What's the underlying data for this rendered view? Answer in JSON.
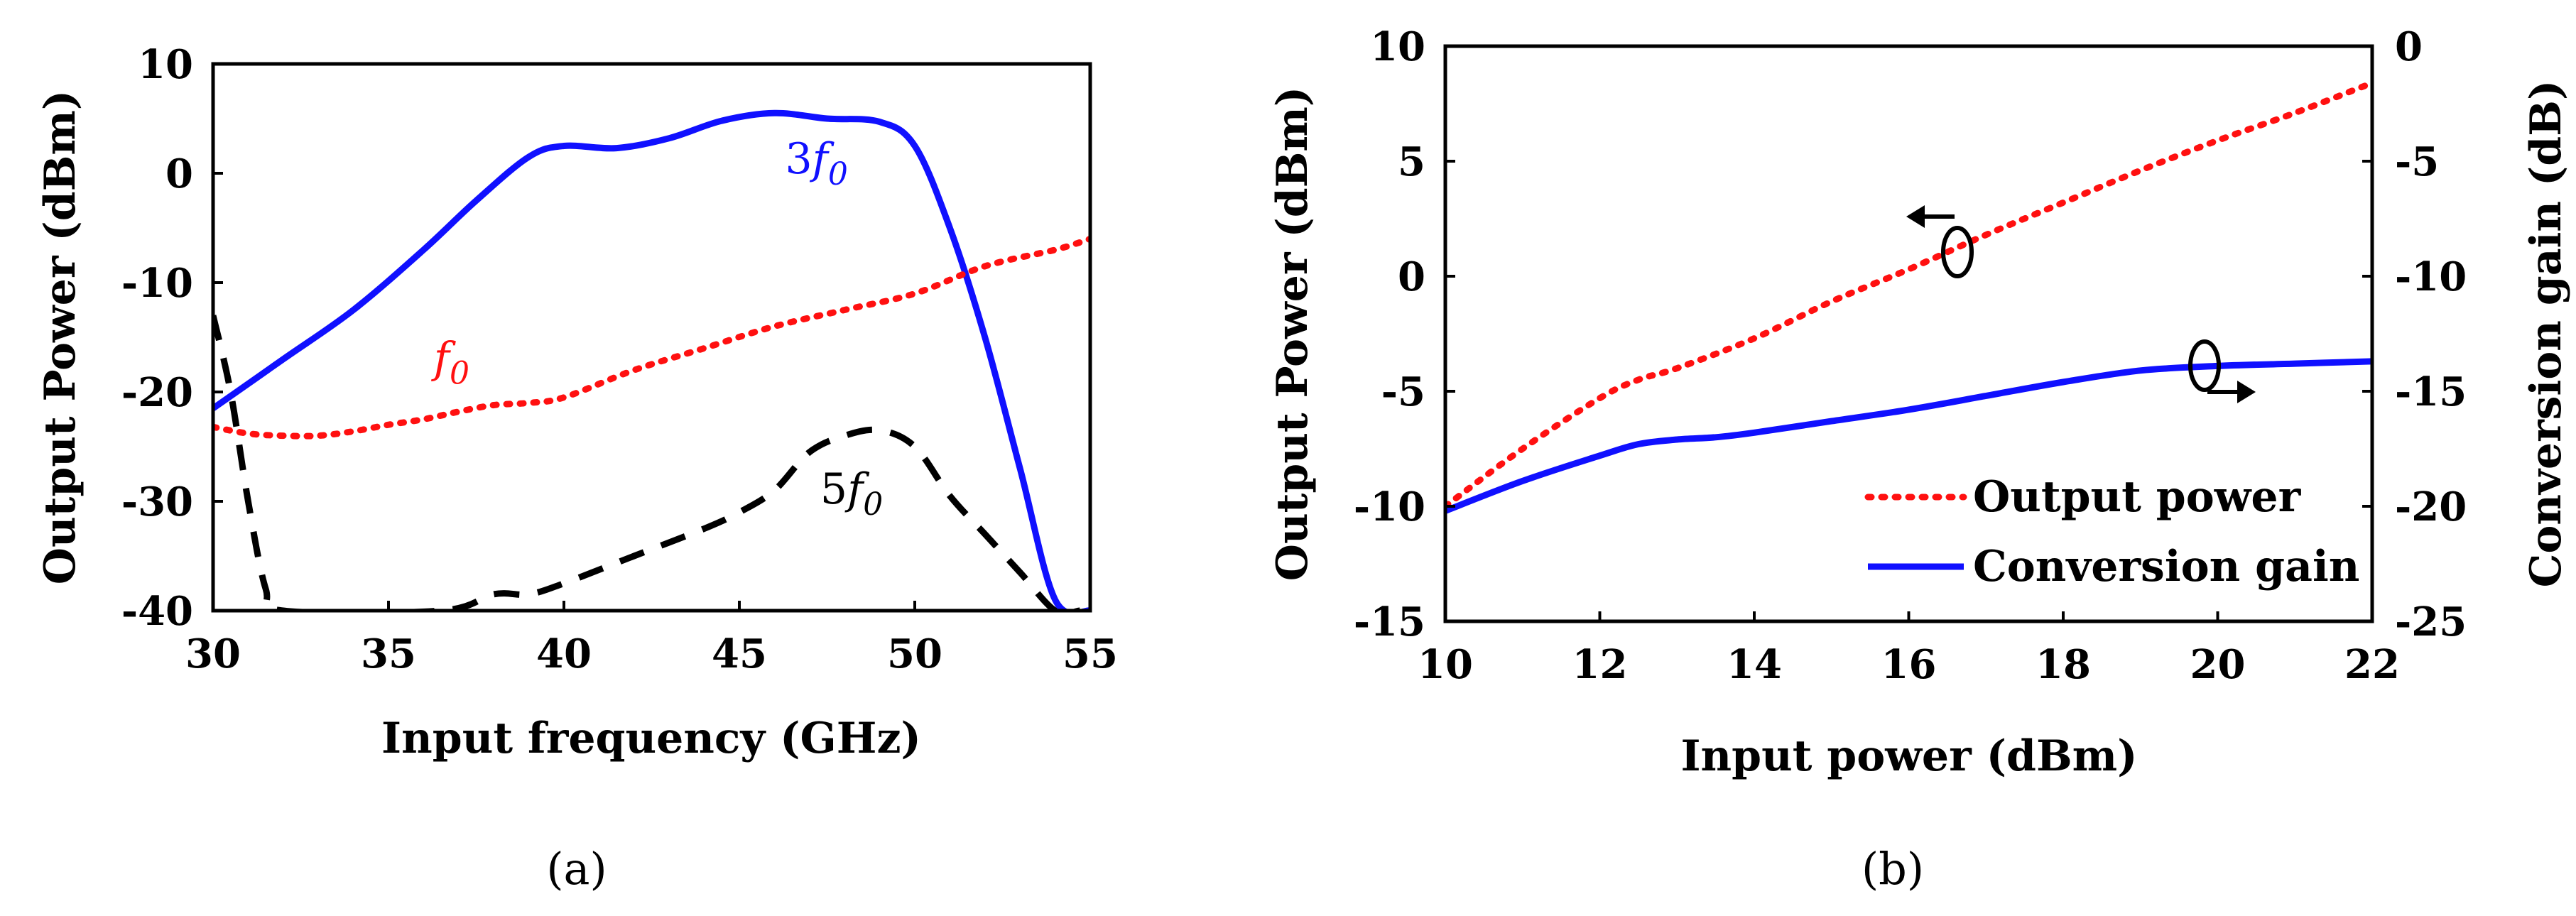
{
  "chart_data": [
    {
      "type": "line",
      "panel_label": "(a)",
      "xlabel": "Input frequency (GHz)",
      "ylabel": "Output Power (dBm)",
      "xlim": [
        30,
        55
      ],
      "ylim": [
        -40,
        10
      ],
      "xticks": [
        30,
        35,
        40,
        45,
        50,
        55
      ],
      "yticks": [
        -40,
        -30,
        -20,
        -10,
        0,
        10
      ],
      "grid": false,
      "series": [
        {
          "name": "3f0",
          "color": "#1010ff",
          "style": "solid",
          "x": [
            30,
            32,
            34,
            36,
            37.5,
            39,
            40,
            41.5,
            43,
            44.5,
            46,
            47.5,
            49,
            50,
            51,
            52,
            53,
            54,
            55
          ],
          "y": [
            -21.5,
            -17,
            -12.5,
            -7,
            -2.5,
            1.5,
            2.5,
            2.3,
            3.2,
            4.8,
            5.5,
            5,
            4.7,
            2.5,
            -5,
            -15,
            -27,
            -39,
            -40
          ]
        },
        {
          "name": "f0",
          "color": "#ff1010",
          "style": "dotted",
          "x": [
            30,
            31,
            32,
            33,
            34,
            35,
            36,
            37,
            38,
            39,
            40,
            42,
            44,
            46,
            48,
            50,
            52,
            54,
            55
          ],
          "y": [
            -23.2,
            -23.8,
            -24,
            -24,
            -23.6,
            -23,
            -22.5,
            -21.8,
            -21.2,
            -21,
            -20.5,
            -18,
            -16,
            -14,
            -12.5,
            -11,
            -8.5,
            -7,
            -6
          ]
        },
        {
          "name": "5f0",
          "color": "#000000",
          "style": "dashed",
          "x": [
            30,
            30.5,
            31,
            31.5,
            32,
            36.5,
            38,
            39,
            40,
            42,
            44,
            45,
            46,
            47,
            48,
            49,
            50,
            51,
            52,
            53,
            54,
            54.7
          ],
          "y": [
            -13,
            -20,
            -30,
            -38,
            -40,
            -40,
            -38.5,
            -38.5,
            -37.5,
            -35,
            -32.5,
            -31,
            -29,
            -25.5,
            -24,
            -23.5,
            -25,
            -29.5,
            -33,
            -36.5,
            -40,
            -40
          ]
        }
      ],
      "annotations": [
        {
          "base": "3",
          "var": "f",
          "sub": "0",
          "color": "#1010ff",
          "at": [
            47.2,
            0
          ]
        },
        {
          "base": "",
          "var": "f",
          "sub": "0",
          "color": "#ff1010",
          "at": [
            36.8,
            -18.2
          ]
        },
        {
          "base": "5",
          "var": "f",
          "sub": "0",
          "color": "#000000",
          "at": [
            48.2,
            -30.2
          ]
        }
      ]
    },
    {
      "type": "line",
      "panel_label": "(b)",
      "xlabel": "Input power (dBm)",
      "ylabel": "Output Power (dBm)",
      "y2label": "Conversion gain (dB)",
      "xlim": [
        10,
        22
      ],
      "ylim": [
        -15,
        10
      ],
      "y2lim": [
        -25,
        0
      ],
      "xticks": [
        10,
        12,
        14,
        16,
        18,
        20,
        22
      ],
      "yticks": [
        -15,
        -10,
        -5,
        0,
        5,
        10
      ],
      "y2ticks": [
        -25,
        -20,
        -15,
        -10,
        -5,
        0
      ],
      "grid": false,
      "series": [
        {
          "name": "Output power",
          "axis": "left",
          "color": "#ff1010",
          "style": "dotted",
          "x": [
            10,
            11,
            12,
            12.5,
            13,
            14,
            15,
            16,
            17,
            18,
            19,
            20,
            21,
            22
          ],
          "y": [
            -10,
            -7.5,
            -5.3,
            -4.5,
            -4,
            -2.7,
            -1.1,
            0.3,
            1.8,
            3.2,
            4.6,
            5.9,
            7.1,
            8.4
          ]
        },
        {
          "name": "Conversion gain",
          "axis": "right",
          "color": "#1010ff",
          "style": "solid",
          "x": [
            10,
            11,
            12,
            12.5,
            13,
            13.5,
            14,
            15,
            16,
            17,
            18,
            19,
            20,
            21,
            22
          ],
          "y": [
            -20.2,
            -18.9,
            -17.8,
            -17.3,
            -17.1,
            -17,
            -16.8,
            -16.3,
            -15.8,
            -15.2,
            -14.6,
            -14.1,
            -13.9,
            -13.8,
            -13.7
          ]
        }
      ],
      "legend_position": "bottom-right"
    }
  ]
}
